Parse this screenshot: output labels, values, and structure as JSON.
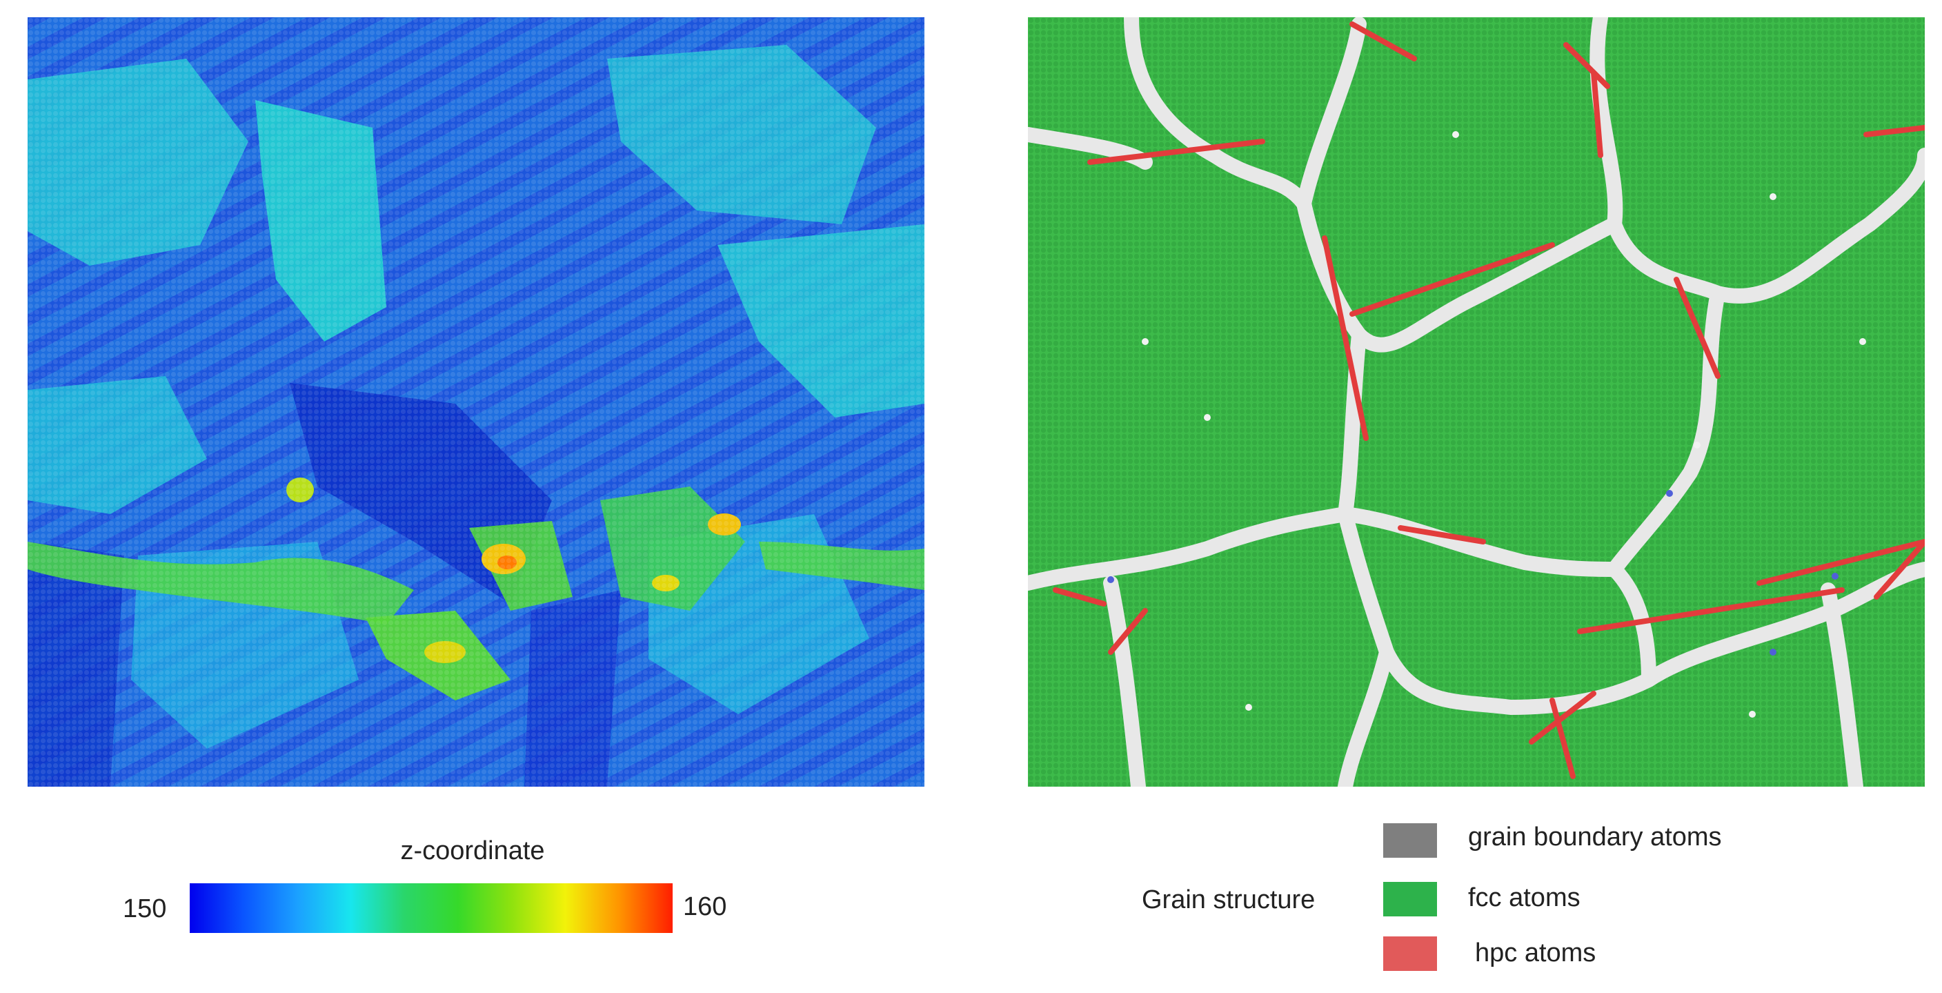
{
  "colorbar": {
    "title": "z-coordinate",
    "min_label": "150",
    "max_label": "160",
    "gradient_colors": [
      "#0000ee",
      "#0a55ff",
      "#1ba0ff",
      "#18e6ee",
      "#2ad66a",
      "#36d92a",
      "#8fe20e",
      "#f2f20a",
      "#ff9500",
      "#ff1e00"
    ]
  },
  "legend": {
    "title": "Grain structure",
    "items": [
      {
        "label": "grain boundary atoms",
        "color": "#7f7f7f"
      },
      {
        "label": "fcc atoms",
        "color": "#2db24b"
      },
      {
        "label": "hpc atoms",
        "color": "#e15a5a"
      }
    ]
  },
  "colors": {
    "height_base": "#1f6fe0",
    "height_low": "#1a3fd8",
    "height_mid": "#23c6d6",
    "height_high": "#4ad34a",
    "height_peak": "#f2c40c",
    "fcc_fill": "#3dbb4a",
    "boundary_fill": "#e8e8e8",
    "hpc_fill": "#e23c3c"
  }
}
